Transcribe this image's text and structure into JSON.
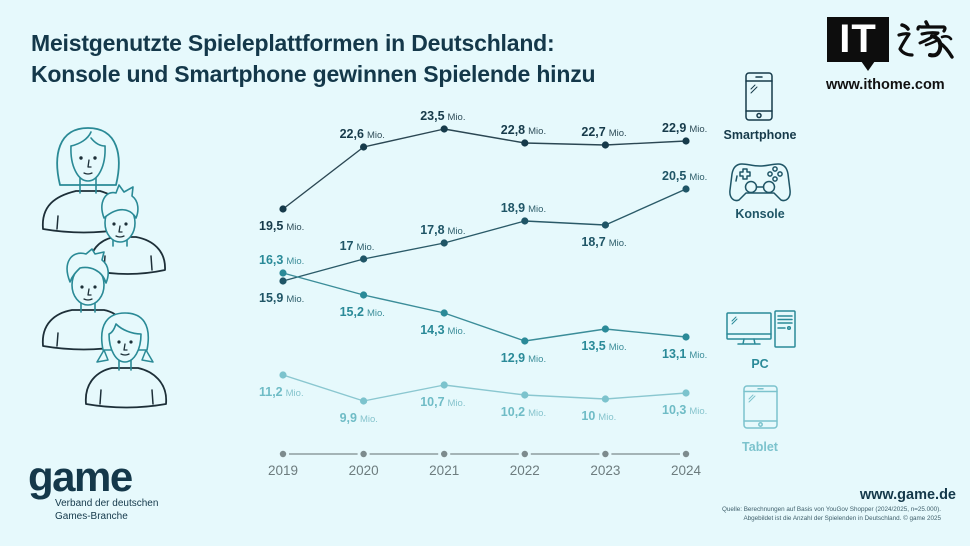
{
  "header": {
    "title_line1": "Meistgenutzte Spieleplattformen in Deutschland:",
    "title_line2": "Konsole und Smartphone gewinnen Spielende hinzu"
  },
  "watermark": {
    "logo_text": "IT",
    "logo_name": "IT之家",
    "url": "www.ithome.com"
  },
  "legend": [
    {
      "name": "Smartphone",
      "icon": "smartphone-icon",
      "color": "#163a4a"
    },
    {
      "name": "Konsole",
      "icon": "gamepad-icon",
      "color": "#1f5566"
    },
    {
      "name": "PC",
      "icon": "desktop-pc-icon",
      "color": "#2a8a98"
    },
    {
      "name": "Tablet",
      "icon": "tablet-icon",
      "color": "#7cc3cd"
    }
  ],
  "footer": {
    "brand": "game",
    "brand_sub1": "Verband der deutschen",
    "brand_sub2": "Games-Branche",
    "website": "www.game.de",
    "source_line1": "Quelle: Berechnungen auf Basis von YouGov Shopper (2024/2025, n=25.000).",
    "source_line2": "Abgebildet ist die Anzahl der Spielenden in Deutschland. © game 2025"
  },
  "colors": {
    "background": "#e6f9fc",
    "title": "#14384a",
    "axis": "#7d8b8d",
    "people_outline": "#2a8a96",
    "people_body": "#1d2f38"
  },
  "chart_data": {
    "type": "line",
    "title": "Meistgenutzte Spieleplattformen in Deutschland: Konsole und Smartphone gewinnen Spielende hinzu",
    "xlabel": "",
    "ylabel": "",
    "unit": "Mio.",
    "categories": [
      "2019",
      "2020",
      "2021",
      "2022",
      "2023",
      "2024"
    ],
    "legend_position": "right",
    "grid": false,
    "series": [
      {
        "name": "Smartphone",
        "color": "#163a4a",
        "values": [
          19.5,
          22.6,
          23.5,
          22.8,
          22.7,
          22.9
        ],
        "labels": [
          "19,5",
          "22,6",
          "23,5",
          "22,8",
          "22,7",
          "22,9"
        ]
      },
      {
        "name": "Konsole",
        "color": "#1f5566",
        "values": [
          15.9,
          17,
          17.8,
          18.9,
          18.7,
          20.5
        ],
        "labels": [
          "15,9",
          "17",
          "17,8",
          "18,9",
          "18,7",
          "20,5"
        ]
      },
      {
        "name": "PC",
        "color": "#2a8a98",
        "values": [
          16.3,
          15.2,
          14.3,
          12.9,
          13.5,
          13.1
        ],
        "labels": [
          "16,3",
          "15,2",
          "14,3",
          "12,9",
          "13,5",
          "13,1"
        ]
      },
      {
        "name": "Tablet",
        "color": "#7cc3cd",
        "values": [
          11.2,
          9.9,
          10.7,
          10.2,
          10,
          10.3
        ],
        "labels": [
          "11,2",
          "9,9",
          "10,7",
          "10,2",
          "10",
          "10,3"
        ]
      }
    ]
  }
}
